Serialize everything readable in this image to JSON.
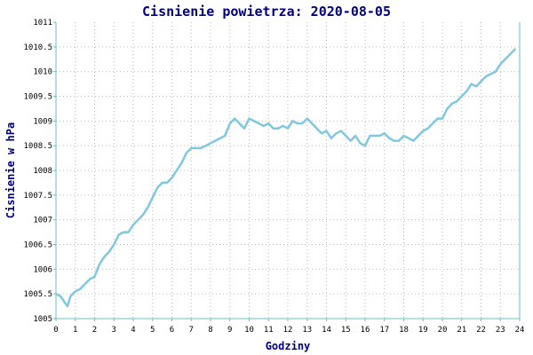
{
  "chart_data": {
    "type": "line",
    "title": "Cisnienie powietrza: 2020-08-05",
    "xlabel": "Godziny",
    "ylabel": "Cisnienie w hPa",
    "xlim": [
      0,
      24
    ],
    "ylim": [
      1005,
      1011
    ],
    "x_ticks": [
      0,
      1,
      2,
      3,
      4,
      5,
      6,
      7,
      8,
      9,
      10,
      11,
      12,
      13,
      14,
      15,
      16,
      17,
      18,
      19,
      20,
      21,
      22,
      23,
      24
    ],
    "y_ticks": [
      "1005",
      "1005.5",
      "1006",
      "1006.5",
      "1007",
      "1007.5",
      "1008",
      "1008.5",
      "1009",
      "1009.5",
      "1010",
      "1010.5",
      "1011"
    ],
    "grid": true,
    "colors": {
      "line": "#80c8e0",
      "axis": "#66c2c2",
      "grid": "#bbbbbb",
      "text": "#000080"
    },
    "series": [
      {
        "x": [
          0,
          0.25,
          0.5,
          0.6,
          0.75,
          1,
          1.25,
          1.5,
          1.75,
          2,
          2.25,
          2.5,
          2.75,
          3,
          3.25,
          3.5,
          3.75,
          4,
          4.25,
          4.5,
          4.75,
          5,
          5.25,
          5.5,
          5.75,
          6,
          6.25,
          6.5,
          6.75,
          7,
          7.25,
          7.5,
          7.75,
          8,
          8.25,
          8.5,
          8.75,
          9,
          9.25,
          9.5,
          9.75,
          10,
          10.25,
          10.5,
          10.75,
          11,
          11.25,
          11.5,
          11.75,
          12,
          12.25,
          12.5,
          12.75,
          13,
          13.25,
          13.5,
          13.75,
          14,
          14.25,
          14.5,
          14.75,
          15,
          15.25,
          15.5,
          15.75,
          16,
          16.25,
          16.5,
          16.75,
          17,
          17.25,
          17.5,
          17.75,
          18,
          18.25,
          18.5,
          18.75,
          19,
          19.25,
          19.5,
          19.75,
          20,
          20.25,
          20.5,
          20.75,
          21,
          21.25,
          21.5,
          21.75,
          22,
          22.25,
          22.5,
          22.75,
          23,
          23.25,
          23.5,
          23.75
        ],
        "values": [
          1005.5,
          1005.45,
          1005.3,
          1005.25,
          1005.45,
          1005.55,
          1005.6,
          1005.7,
          1005.8,
          1005.85,
          1006.1,
          1006.25,
          1006.35,
          1006.5,
          1006.7,
          1006.75,
          1006.75,
          1006.9,
          1007.0,
          1007.1,
          1007.25,
          1007.45,
          1007.65,
          1007.75,
          1007.75,
          1007.85,
          1008.0,
          1008.15,
          1008.35,
          1008.45,
          1008.45,
          1008.45,
          1008.5,
          1008.55,
          1008.6,
          1008.65,
          1008.7,
          1008.95,
          1009.05,
          1008.95,
          1008.85,
          1009.05,
          1009.0,
          1008.95,
          1008.9,
          1008.95,
          1008.85,
          1008.85,
          1008.9,
          1008.85,
          1009.0,
          1008.95,
          1008.95,
          1009.05,
          1008.95,
          1008.85,
          1008.75,
          1008.8,
          1008.65,
          1008.75,
          1008.8,
          1008.7,
          1008.6,
          1008.7,
          1008.55,
          1008.5,
          1008.7,
          1008.7,
          1008.7,
          1008.75,
          1008.65,
          1008.6,
          1008.6,
          1008.7,
          1008.65,
          1008.6,
          1008.7,
          1008.8,
          1008.85,
          1008.95,
          1009.05,
          1009.05,
          1009.25,
          1009.35,
          1009.4,
          1009.5,
          1009.6,
          1009.75,
          1009.7,
          1009.8,
          1009.9,
          1009.95,
          1010.0,
          1010.15,
          1010.25,
          1010.35,
          1010.45
        ]
      }
    ]
  }
}
